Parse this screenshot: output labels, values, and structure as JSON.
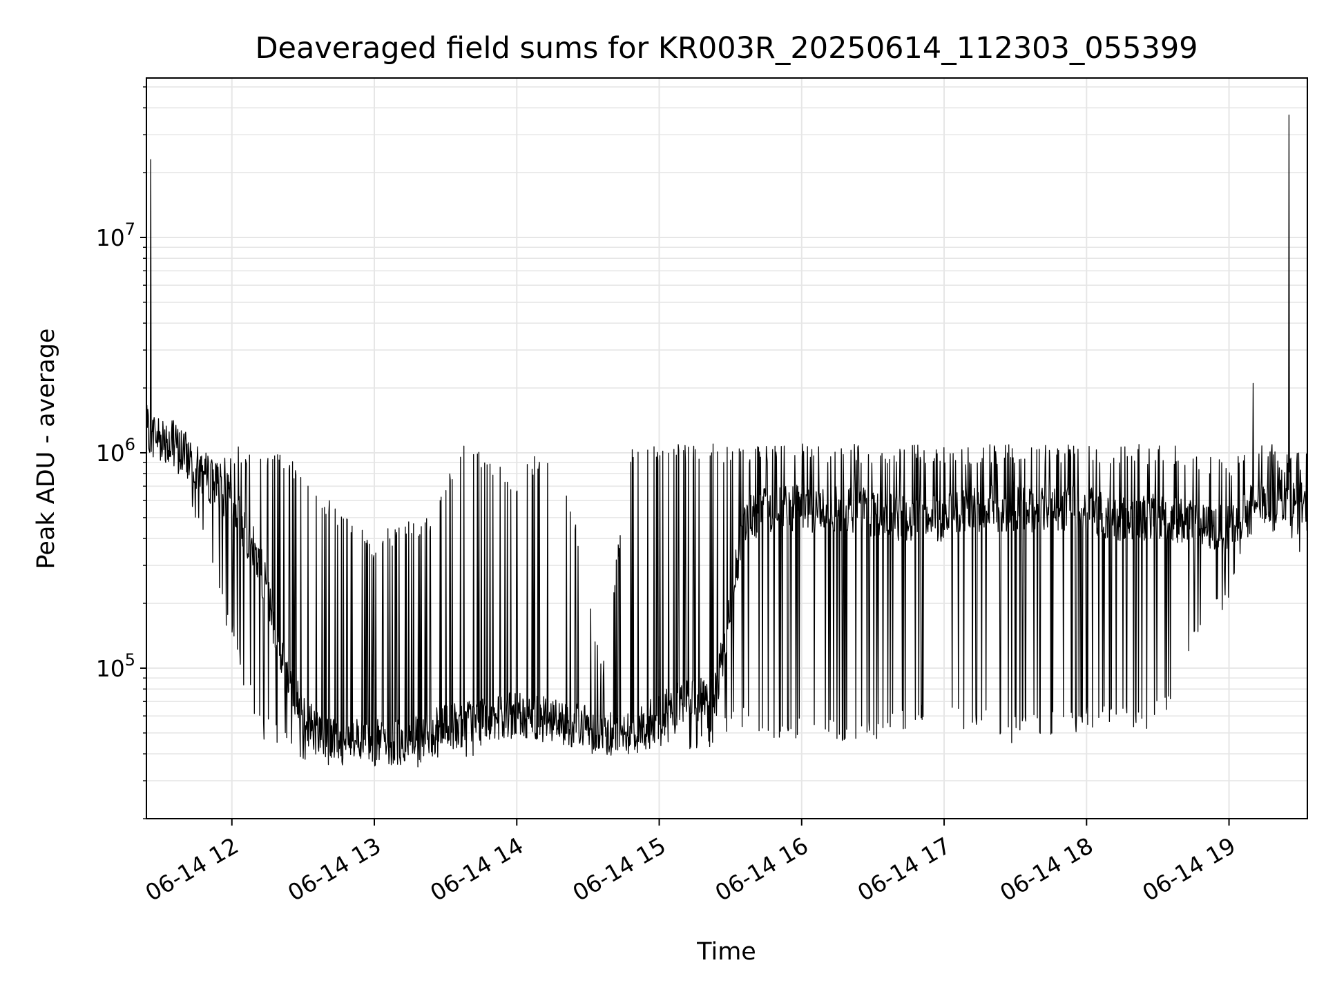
{
  "chart_data": {
    "type": "line",
    "title": "Deaveraged field sums for KR003R_20250614_112303_055399",
    "xlabel": "Time",
    "ylabel": "Peak ADU - average",
    "yscale": "log",
    "ylim": [
      20000,
      55000000
    ],
    "xlim_hours": [
      11.4,
      19.55
    ],
    "grid": true,
    "legend": "none",
    "colors": {
      "line": "#000000",
      "grid": "#e6e6e6",
      "axes": "#000000",
      "background": "#ffffff"
    },
    "x_ticks": [
      {
        "value": 12,
        "label": "06-14 12"
      },
      {
        "value": 13,
        "label": "06-14 13"
      },
      {
        "value": 14,
        "label": "06-14 14"
      },
      {
        "value": 15,
        "label": "06-14 15"
      },
      {
        "value": 16,
        "label": "06-14 16"
      },
      {
        "value": 17,
        "label": "06-14 17"
      },
      {
        "value": 18,
        "label": "06-14 18"
      },
      {
        "value": 19,
        "label": "06-14 19"
      }
    ],
    "y_ticks": [
      {
        "value": 100000,
        "base": "10",
        "exp": "5"
      },
      {
        "value": 1000000,
        "base": "10",
        "exp": "6"
      },
      {
        "value": 10000000,
        "base": "10",
        "exp": "7"
      }
    ],
    "series": [
      {
        "name": "Peak ADU - average",
        "sampling": "approximate envelope of a densely sampled signal",
        "time_hours": [
          11.4,
          11.6,
          11.8,
          12.0,
          12.2,
          12.4,
          12.6,
          12.8,
          13.0,
          13.2,
          13.4,
          13.6,
          13.8,
          14.0,
          14.2,
          14.4,
          14.6,
          14.8,
          15.0,
          15.2,
          15.4,
          15.6,
          15.8,
          16.0,
          16.2,
          16.4,
          16.6,
          16.8,
          17.0,
          17.2,
          17.4,
          17.6,
          17.8,
          18.0,
          18.2,
          18.4,
          18.6,
          18.8,
          19.0,
          19.2,
          19.4,
          19.55
        ],
        "baseline": [
          1300000,
          1100000,
          800000,
          600000,
          300000,
          80000,
          50000,
          45000,
          45000,
          45000,
          50000,
          55000,
          60000,
          60000,
          60000,
          55000,
          50000,
          50000,
          60000,
          70000,
          75000,
          500000,
          550000,
          550000,
          550000,
          550000,
          500000,
          500000,
          500000,
          550000,
          550000,
          550000,
          550000,
          550000,
          500000,
          500000,
          500000,
          450000,
          450000,
          600000,
          600000,
          550000
        ],
        "upper": [
          1500000,
          1400000,
          1000000,
          1100000,
          1100000,
          1000000,
          700000,
          500000,
          400000,
          500000,
          500000,
          1100000,
          1000000,
          800000,
          1100000,
          600000,
          100000,
          1100000,
          1100000,
          1100000,
          1100000,
          1100000,
          1100000,
          1100000,
          1100000,
          1100000,
          1100000,
          1100000,
          1100000,
          1100000,
          1100000,
          1100000,
          1100000,
          1100000,
          1100000,
          1100000,
          1100000,
          1000000,
          900000,
          1200000,
          1000000,
          1000000
        ],
        "lower": [
          1000000,
          800000,
          400000,
          120000,
          45000,
          40000,
          35000,
          35000,
          35000,
          32000,
          35000,
          38000,
          40000,
          45000,
          45000,
          42000,
          42000,
          40000,
          40000,
          40000,
          42000,
          50000,
          45000,
          45000,
          45000,
          45000,
          45000,
          50000,
          50000,
          50000,
          45000,
          45000,
          50000,
          50000,
          50000,
          50000,
          60000,
          150000,
          200000,
          400000,
          450000,
          300000
        ],
        "spikes": [
          {
            "time_hours": 11.43,
            "value": 23000000
          },
          {
            "time_hours": 19.42,
            "value": 37000000
          },
          {
            "time_hours": 19.17,
            "value": 2100000
          }
        ]
      }
    ]
  }
}
